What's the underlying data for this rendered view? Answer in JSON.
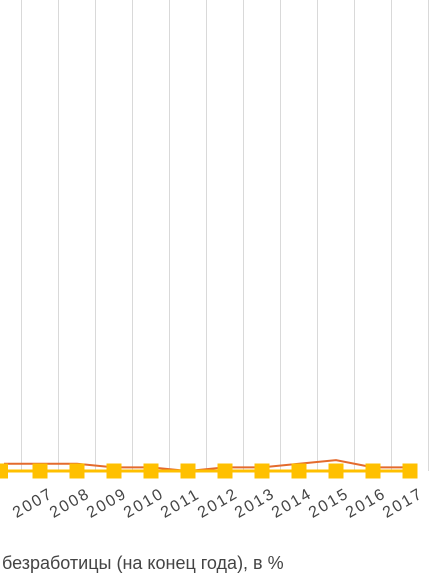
{
  "chart_data": {
    "type": "line",
    "categories": [
      "2007",
      "2008",
      "2009",
      "2010",
      "2011",
      "2012",
      "2013",
      "2014",
      "2015",
      "2016",
      "2017"
    ],
    "series": [
      {
        "values": [
          0.2,
          0.2,
          0.1,
          0.1,
          0.0,
          0.1,
          0.1,
          0.2,
          0.3,
          0.1,
          0.1
        ],
        "color": "#e46b2d"
      },
      {
        "values": [
          0.0,
          0.0,
          0.0,
          0.0,
          0.0,
          0.0,
          0.0,
          0.0,
          0.0,
          0.0,
          0.0
        ],
        "color": "#ffc000"
      }
    ],
    "xlabel_visible": "безработицы (на конец года), в %",
    "grid": "vertical",
    "ylim": [
      0,
      13
    ]
  }
}
